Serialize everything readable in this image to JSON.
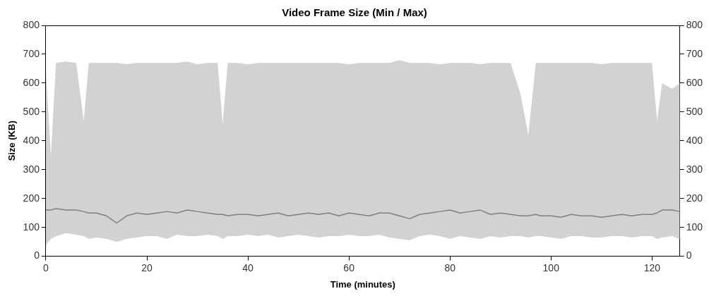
{
  "chart_data": {
    "type": "line",
    "title": "Video Frame Size (Min / Max)",
    "xlabel": "Time (minutes)",
    "ylabel": "Size (KB)",
    "x": [
      0,
      1,
      2,
      4,
      6,
      7.5,
      8.5,
      10,
      12,
      14,
      16,
      18,
      20,
      22,
      24,
      26,
      28,
      30,
      32,
      34,
      35,
      36,
      38,
      40,
      42,
      44,
      46,
      48,
      50,
      52,
      54,
      56,
      58,
      60,
      62,
      64,
      66,
      68,
      70,
      72,
      74,
      76,
      78,
      80,
      82,
      84,
      86,
      88,
      90,
      92,
      94,
      95.5,
      97,
      98,
      100,
      102,
      104,
      106,
      108,
      110,
      112,
      114,
      116,
      118,
      120,
      121,
      122,
      124,
      125.5
    ],
    "series": [
      {
        "color": "#7f7f7f",
        "values": [
          160,
          160,
          165,
          160,
          160,
          155,
          150,
          150,
          140,
          115,
          140,
          150,
          145,
          150,
          155,
          150,
          160,
          155,
          150,
          145,
          145,
          140,
          145,
          145,
          140,
          145,
          150,
          140,
          145,
          150,
          145,
          150,
          140,
          150,
          145,
          140,
          150,
          150,
          140,
          130,
          145,
          150,
          155,
          160,
          150,
          155,
          160,
          145,
          150,
          145,
          140,
          140,
          145,
          140,
          140,
          135,
          145,
          140,
          140,
          135,
          140,
          145,
          140,
          145,
          145,
          150,
          160,
          160,
          155
        ],
        "lower": [
          40,
          60,
          70,
          80,
          75,
          70,
          60,
          65,
          60,
          50,
          60,
          65,
          70,
          70,
          60,
          75,
          70,
          70,
          75,
          70,
          60,
          70,
          70,
          75,
          70,
          75,
          65,
          70,
          75,
          70,
          65,
          70,
          70,
          75,
          70,
          70,
          75,
          65,
          60,
          55,
          70,
          75,
          70,
          60,
          70,
          65,
          60,
          70,
          65,
          70,
          70,
          65,
          70,
          70,
          65,
          60,
          70,
          70,
          65,
          65,
          70,
          70,
          65,
          70,
          70,
          60,
          65,
          70,
          60
        ],
        "upper": [
          640,
          350,
          670,
          675,
          670,
          470,
          670,
          670,
          670,
          670,
          665,
          670,
          670,
          670,
          670,
          670,
          675,
          665,
          670,
          670,
          460,
          670,
          670,
          665,
          670,
          670,
          670,
          670,
          670,
          670,
          670,
          670,
          670,
          665,
          670,
          670,
          670,
          670,
          680,
          670,
          670,
          670,
          665,
          670,
          670,
          670,
          665,
          670,
          670,
          670,
          560,
          420,
          670,
          670,
          670,
          670,
          670,
          670,
          670,
          665,
          670,
          670,
          670,
          670,
          670,
          470,
          600,
          580,
          600
        ]
      }
    ],
    "xlim": [
      0,
      125.5
    ],
    "xticks": [
      0,
      20,
      40,
      60,
      80,
      100,
      120
    ],
    "ylim": [
      0,
      800
    ],
    "yticks": [
      0,
      100,
      200,
      300,
      400,
      500,
      600,
      700,
      800
    ],
    "y2lim": [
      0,
      800
    ],
    "y2ticks": [
      0,
      100,
      200,
      300,
      400,
      500,
      600,
      700,
      800
    ],
    "marker": "none",
    "legend": false,
    "grid": false
  }
}
